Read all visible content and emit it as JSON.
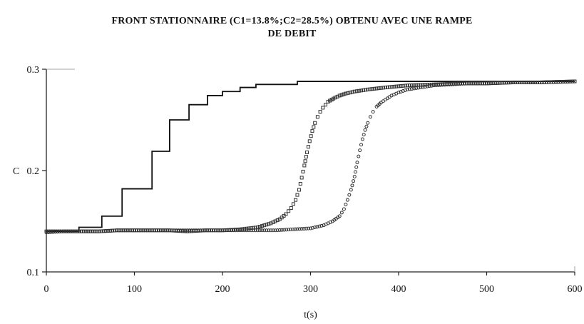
{
  "chart_data": {
    "type": "line",
    "title": "FRONT STATIONNAIRE (C1=13.8%;C2=28.5%) OBTENU AVEC UNE RAMPE",
    "subtitle": "DE DEBIT",
    "xlabel": "t(s)",
    "ylabel": "C",
    "xlim": [
      0,
      600
    ],
    "ylim": [
      0.1,
      0.3
    ],
    "xticks": [
      0,
      100,
      200,
      300,
      400,
      500,
      600
    ],
    "yticks": [
      0.1,
      0.2,
      0.3
    ],
    "xtick_labels": [
      "0",
      "100",
      "200",
      "300",
      "400",
      "500",
      "600"
    ],
    "ytick_labels": [
      "0.1",
      "0.2",
      "0.3"
    ],
    "grid": false,
    "series": [
      {
        "style": "step",
        "color": "#111111",
        "x": [
          0,
          37,
          63,
          86,
          120,
          140,
          162,
          183,
          200,
          220,
          238,
          285,
          600
        ],
        "y": [
          0.14,
          0.144,
          0.155,
          0.182,
          0.219,
          0.25,
          0.265,
          0.274,
          0.278,
          0.282,
          0.285,
          0.288,
          0.288
        ]
      },
      {
        "style": "square-markers",
        "color": "#333333",
        "x": [
          0,
          20,
          40,
          60,
          80,
          100,
          120,
          140,
          160,
          180,
          200,
          220,
          240,
          255,
          265,
          272,
          278,
          283,
          287,
          290,
          293,
          296,
          299,
          302,
          305,
          308,
          311,
          314,
          317,
          320,
          324,
          328,
          333,
          340,
          350,
          365,
          385,
          410,
          440,
          470,
          500,
          530,
          560,
          600
        ],
        "y": [
          0.14,
          0.14,
          0.14,
          0.14,
          0.141,
          0.141,
          0.141,
          0.141,
          0.14,
          0.141,
          0.141,
          0.142,
          0.144,
          0.148,
          0.152,
          0.157,
          0.163,
          0.171,
          0.181,
          0.193,
          0.205,
          0.218,
          0.229,
          0.239,
          0.247,
          0.253,
          0.258,
          0.262,
          0.265,
          0.268,
          0.27,
          0.272,
          0.274,
          0.276,
          0.278,
          0.28,
          0.282,
          0.284,
          0.285,
          0.286,
          0.286,
          0.287,
          0.287,
          0.288
        ]
      },
      {
        "style": "circle-markers",
        "color": "#333333",
        "x": [
          0,
          20,
          40,
          60,
          80,
          100,
          120,
          140,
          160,
          180,
          200,
          220,
          240,
          260,
          280,
          300,
          315,
          325,
          333,
          338,
          342,
          346,
          350,
          353,
          356,
          359,
          362,
          365,
          368,
          371,
          375,
          380,
          385,
          392,
          400,
          410,
          425,
          440,
          460,
          480,
          500,
          530,
          560,
          600
        ],
        "y": [
          0.139,
          0.14,
          0.14,
          0.14,
          0.141,
          0.141,
          0.141,
          0.141,
          0.141,
          0.141,
          0.141,
          0.141,
          0.141,
          0.141,
          0.142,
          0.143,
          0.146,
          0.15,
          0.155,
          0.162,
          0.171,
          0.181,
          0.194,
          0.208,
          0.22,
          0.231,
          0.24,
          0.247,
          0.253,
          0.258,
          0.263,
          0.267,
          0.27,
          0.274,
          0.277,
          0.28,
          0.282,
          0.284,
          0.285,
          0.286,
          0.286,
          0.287,
          0.287,
          0.288
        ]
      }
    ]
  }
}
